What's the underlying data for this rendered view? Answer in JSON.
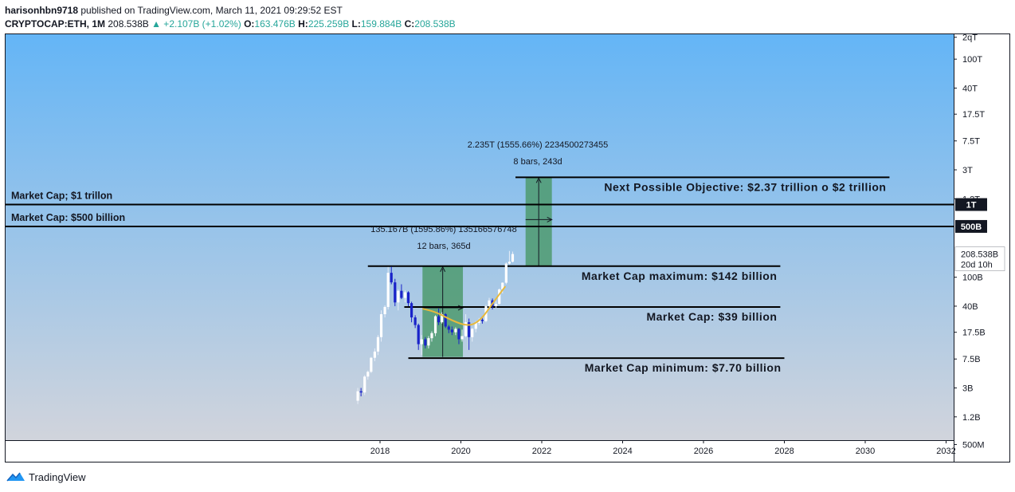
{
  "header": {
    "publisher": "harisonhbn9718",
    "published_text": "published on TradingView.com, March 11, 2021 09:29:52 EST",
    "symbol": "CRYPTOCAP:ETH, 1M",
    "price": "208.538B",
    "change": "▲ +2.107B (+1.02%)",
    "open_label": "O:",
    "open": "163.476B",
    "high_label": "H:",
    "high": "225.259B",
    "low_label": "L:",
    "low": "159.884B",
    "close_label": "C:",
    "close": "208.538B"
  },
  "footer": {
    "brand": "TradingView"
  },
  "colors": {
    "bg_top": "#64b5f6",
    "bg_bottom": "#d1d4dc",
    "up": "#ffffff",
    "down": "#1a23c9",
    "box": "#4e9a6e",
    "curve": "#e8b93c"
  },
  "chart_data": {
    "type": "candlestick",
    "currency": "USD",
    "y_scale": "log",
    "x_ticks": [
      "2018",
      "2020",
      "2022",
      "2024",
      "2026",
      "2028",
      "2030",
      "2032"
    ],
    "y_ticks": [
      {
        "label": "2qT",
        "value": 200000000000000
      },
      {
        "label": "100T",
        "value": 100000000000000
      },
      {
        "label": "40T",
        "value": 40000000000000
      },
      {
        "label": "17.5T",
        "value": 17500000000000
      },
      {
        "label": "7.5T",
        "value": 7500000000000
      },
      {
        "label": "3T",
        "value": 3000000000000
      },
      {
        "label": "1.2T",
        "value": 1200000000000
      },
      {
        "label": "100B",
        "value": 100000000000
      },
      {
        "label": "40B",
        "value": 40000000000
      },
      {
        "label": "17.5B",
        "value": 17500000000
      },
      {
        "label": "7.5B",
        "value": 7500000000
      },
      {
        "label": "3B",
        "value": 3000000000
      },
      {
        "label": "1.2B",
        "value": 1200000000
      },
      {
        "label": "500M",
        "value": 500000000
      }
    ],
    "price_badges": [
      {
        "label": "1T",
        "value": 1000000000000,
        "dark": true
      },
      {
        "label": "500B",
        "value": 500000000000,
        "dark": true
      },
      {
        "label": "208.538B",
        "sub": "20d 10h",
        "value": 208538000000,
        "dark": false
      }
    ],
    "horizontal_lines": [
      {
        "value": 1000000000000,
        "x_from": 2015.5,
        "x_to": 2033.4,
        "label": "Market Cap; $1 trillon",
        "label_side": "left"
      },
      {
        "value": 500000000000,
        "x_from": 2015.5,
        "x_to": 2033.4,
        "label": "Market Cap: $500 billion",
        "label_side": "left"
      },
      {
        "value": 2370000000000,
        "x_from": 2021.35,
        "x_to": 2030.6,
        "label": "Next Possible Objective: $2.37 trillion o $2 trillion",
        "label_side": "below-right"
      },
      {
        "value": 142000000000,
        "x_from": 2017.7,
        "x_to": 2027.9,
        "label": "Market Cap maximum: $142 billion",
        "label_side": "below-right"
      },
      {
        "value": 39000000000,
        "x_from": 2018.6,
        "x_to": 2027.9,
        "label": "Market Cap: $39 billion",
        "label_side": "below-right"
      },
      {
        "value": 7700000000,
        "x_from": 2018.7,
        "x_to": 2028.0,
        "label": "Market Cap minimum: $7.70 billion",
        "label_side": "below-right"
      }
    ],
    "measure_boxes": [
      {
        "x0": 2019.05,
        "x1": 2020.05,
        "y0": 8000000000,
        "y1": 142000000000,
        "line1": "135.167B (1595.86%) 135166576748",
        "line2": "12 bars, 365d"
      },
      {
        "x0": 2021.6,
        "x1": 2022.25,
        "y0": 142000000000,
        "y1": 2370000000000,
        "line1": "2.235T (1555.66%) 2234500273455",
        "line2": "8 bars, 243d"
      }
    ],
    "curve": [
      [
        2019.05,
        37000000000
      ],
      [
        2019.4,
        33000000000
      ],
      [
        2019.8,
        25000000000
      ],
      [
        2020.2,
        21000000000
      ],
      [
        2020.5,
        26000000000
      ],
      [
        2020.8,
        45000000000
      ],
      [
        2021.1,
        75000000000
      ]
    ],
    "candles": [
      [
        2017.45,
        2.0,
        3.0,
        1.8,
        2.7
      ],
      [
        2017.53,
        2.7,
        3.0,
        2.3,
        2.6
      ],
      [
        2017.62,
        2.6,
        4.5,
        2.4,
        4.3
      ],
      [
        2017.7,
        4.3,
        5.2,
        3.9,
        5.0
      ],
      [
        2017.78,
        5.0,
        8.0,
        4.8,
        7.8
      ],
      [
        2017.87,
        7.8,
        10.5,
        7.0,
        9.5
      ],
      [
        2017.95,
        9.5,
        16.0,
        8.5,
        15.0
      ],
      [
        2018.03,
        15.0,
        35.0,
        13.0,
        31.0
      ],
      [
        2018.12,
        31.0,
        41.0,
        28.0,
        39.0
      ],
      [
        2018.2,
        39.0,
        138.0,
        36.0,
        115.0
      ],
      [
        2018.28,
        115.0,
        140.0,
        80.0,
        85.0
      ],
      [
        2018.37,
        85.0,
        95.0,
        40.0,
        45.0
      ],
      [
        2018.45,
        45.0,
        68.0,
        35.0,
        65.0
      ],
      [
        2018.53,
        65.0,
        80.0,
        50.0,
        52.0
      ],
      [
        2018.62,
        52.0,
        66.0,
        45.0,
        62.0
      ],
      [
        2018.7,
        62.0,
        64.0,
        40.0,
        44.0
      ],
      [
        2018.78,
        44.0,
        46.0,
        24.0,
        28.0
      ],
      [
        2018.87,
        28.0,
        30.0,
        20.0,
        22.0
      ],
      [
        2018.95,
        22.0,
        23.0,
        10.0,
        12.0
      ],
      [
        2019.03,
        12.0,
        16.0,
        8.5,
        14.0
      ],
      [
        2019.12,
        14.0,
        15.0,
        10.5,
        11.5
      ],
      [
        2019.2,
        11.5,
        15.5,
        10.5,
        14.5
      ],
      [
        2019.28,
        14.5,
        18.0,
        13.0,
        17.0
      ],
      [
        2019.37,
        17.0,
        30.0,
        15.5,
        29.0
      ],
      [
        2019.45,
        29.0,
        37.0,
        22.0,
        24.0
      ],
      [
        2019.53,
        24.0,
        33.0,
        23.0,
        31.0
      ],
      [
        2019.62,
        31.0,
        32.0,
        20.0,
        21.0
      ],
      [
        2019.7,
        21.0,
        22.0,
        17.0,
        19.0
      ],
      [
        2019.78,
        19.0,
        21.0,
        16.0,
        17.5
      ],
      [
        2019.87,
        17.5,
        20.5,
        16.0,
        19.5
      ],
      [
        2019.95,
        19.5,
        20.0,
        12.0,
        14.0
      ],
      [
        2020.03,
        14.0,
        19.0,
        13.0,
        15.5
      ],
      [
        2020.12,
        15.5,
        31.0,
        15.0,
        24.0
      ],
      [
        2020.2,
        24.0,
        27.0,
        10.0,
        15.0
      ],
      [
        2020.28,
        15.0,
        20.0,
        13.0,
        19.5
      ],
      [
        2020.37,
        19.5,
        25.0,
        17.5,
        23.5
      ],
      [
        2020.45,
        23.5,
        27.5,
        22.0,
        26.0
      ],
      [
        2020.53,
        26.0,
        29.0,
        23.0,
        25.0
      ],
      [
        2020.62,
        25.0,
        42.0,
        24.0,
        40.0
      ],
      [
        2020.7,
        40.0,
        52.0,
        38.0,
        48.0
      ],
      [
        2020.78,
        48.0,
        51.0,
        36.0,
        40.0
      ],
      [
        2020.87,
        40.0,
        47.0,
        38.0,
        43.0
      ],
      [
        2020.95,
        43.0,
        70.0,
        42.0,
        68.0
      ],
      [
        2021.03,
        68.0,
        85.0,
        60.0,
        84.0
      ],
      [
        2021.12,
        84.0,
        160.0,
        80.0,
        154.0
      ],
      [
        2021.2,
        154.0,
        230.0,
        150.0,
        163.5
      ],
      [
        2021.28,
        163.5,
        225.3,
        159.9,
        208.5
      ]
    ],
    "candle_units": "billion USD market cap, [x, open, high, low, close]"
  }
}
